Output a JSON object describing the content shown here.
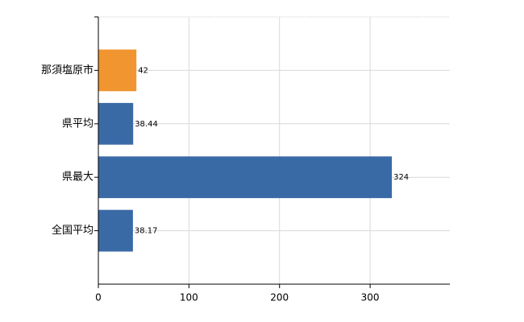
{
  "chart_data": {
    "type": "hbar",
    "categories": [
      "那須塩原市",
      "県平均",
      "県最大",
      "全国平均"
    ],
    "values": [
      42,
      38.44,
      324,
      38.17
    ],
    "colors": [
      "#f0952f",
      "#3a6aa6",
      "#3a6aa6",
      "#3a6aa6"
    ],
    "xlim": [
      0,
      388
    ],
    "xticks": [
      0,
      100,
      200,
      300
    ],
    "grid": true,
    "data_labels": true
  }
}
